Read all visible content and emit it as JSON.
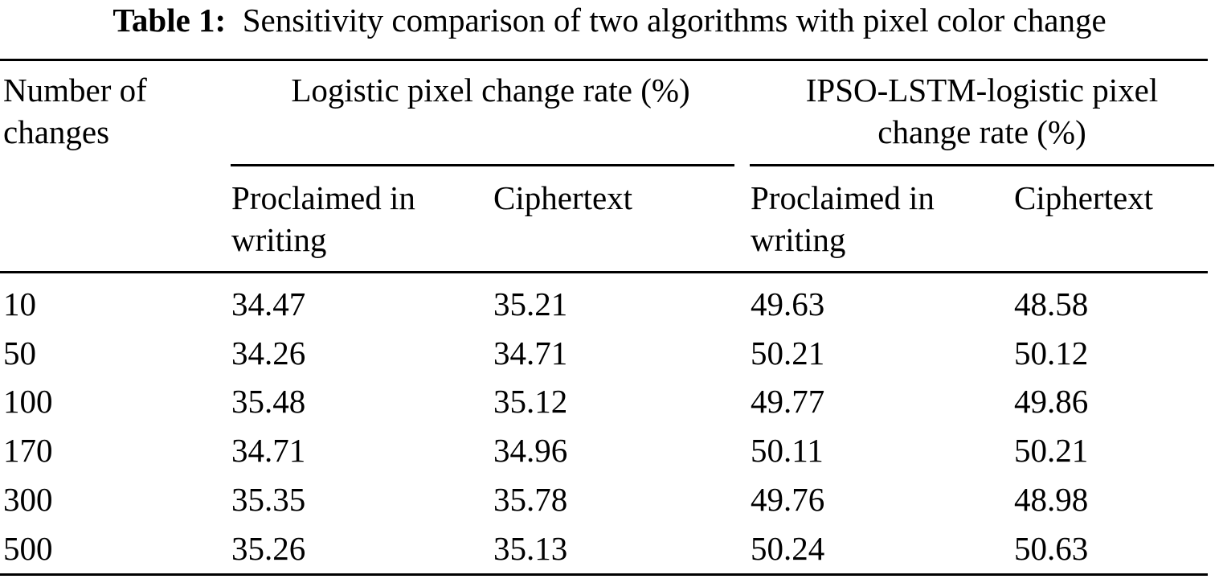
{
  "table": {
    "caption_label": "Table 1:",
    "caption_text": "Sensitivity comparison of two algorithms with pixel color change",
    "header": {
      "row_label_line1": "Number of",
      "row_label_line2": "changes",
      "group1": "Logistic pixel change rate (%)",
      "group2_line1": "IPSO-LSTM-logistic pixel",
      "group2_line2": "change rate (%)",
      "sub_plain_line1": "Proclaimed in",
      "sub_plain_line2": "writing",
      "sub_cipher": "Ciphertext"
    },
    "rows": [
      [
        "10",
        "34.47",
        "35.21",
        "49.63",
        "48.58"
      ],
      [
        "50",
        "34.26",
        "34.71",
        "50.21",
        "50.12"
      ],
      [
        "100",
        "35.48",
        "35.12",
        "49.77",
        "49.86"
      ],
      [
        "170",
        "34.71",
        "34.96",
        "50.11",
        "50.21"
      ],
      [
        "300",
        "35.35",
        "35.78",
        "49.76",
        "48.98"
      ],
      [
        "500",
        "35.26",
        "35.13",
        "50.24",
        "50.63"
      ]
    ]
  }
}
